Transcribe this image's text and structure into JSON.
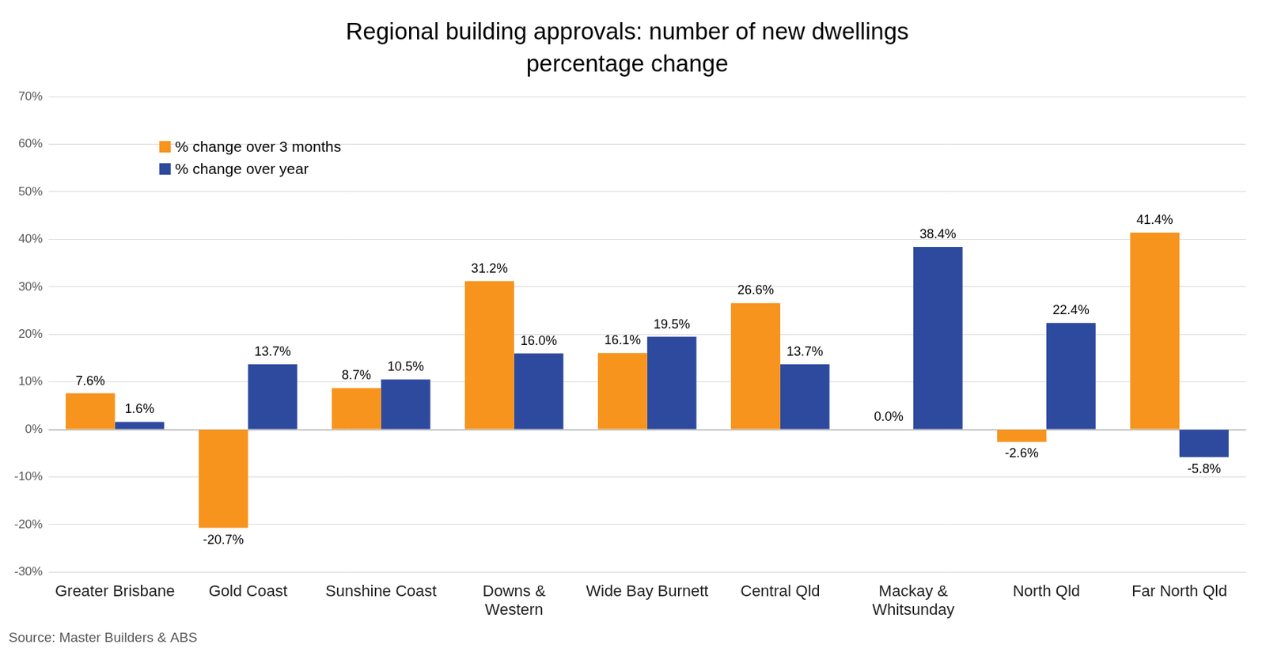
{
  "chart_data": {
    "type": "bar",
    "title": [
      "Regional building approvals: number of new dwellings",
      "percentage change"
    ],
    "source": "Source: Master Builders & ABS",
    "categories": [
      "Greater Brisbane",
      "Gold Coast",
      "Sunshine Coast",
      [
        "Downs &",
        "Western"
      ],
      "Wide Bay Burnett",
      "Central Qld",
      [
        "Mackay &",
        "Whitsunday"
      ],
      "North Qld",
      "Far North Qld"
    ],
    "series": [
      {
        "name": "% change over 3 months",
        "color": "#F7941D",
        "values": [
          7.6,
          -20.7,
          8.7,
          31.2,
          16.1,
          26.6,
          0.0,
          -2.6,
          41.4
        ],
        "value_labels": [
          "7.6%",
          "-20.7%",
          "8.7%",
          "31.2%",
          "16.1%",
          "26.6%",
          "0.0%",
          "-2.6%",
          "41.4%"
        ]
      },
      {
        "name": "% change over year",
        "color": "#2E4A9E",
        "values": [
          1.6,
          13.7,
          10.5,
          16.0,
          19.5,
          13.7,
          38.4,
          22.4,
          -5.8
        ],
        "value_labels": [
          "1.6%",
          "13.7%",
          "10.5%",
          "16.0%",
          "19.5%",
          "13.7%",
          "38.4%",
          "22.4%",
          "-5.8%"
        ]
      }
    ],
    "ylim": [
      -30,
      70
    ],
    "yticks": [
      {
        "value": -30,
        "label": "-30%"
      },
      {
        "value": -20,
        "label": "-20%"
      },
      {
        "value": -10,
        "label": "-10%"
      },
      {
        "value": 0,
        "label": "0%"
      },
      {
        "value": 10,
        "label": "10%"
      },
      {
        "value": 20,
        "label": "20%"
      },
      {
        "value": 30,
        "label": "30%"
      },
      {
        "value": 40,
        "label": "40%"
      },
      {
        "value": 50,
        "label": "50%"
      },
      {
        "value": 60,
        "label": "60%"
      },
      {
        "value": 70,
        "label": "70%"
      }
    ],
    "grid": true,
    "legend": "upper left",
    "data_labels": true
  }
}
